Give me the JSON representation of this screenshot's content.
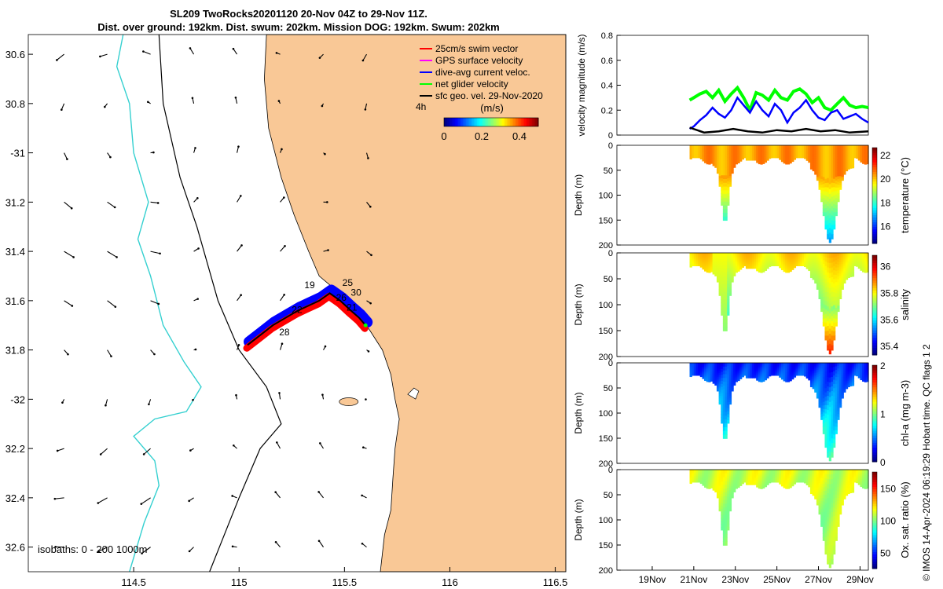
{
  "title_line1": "SL209 TwoRocks20201120 20-Nov 04Z to 29-Nov 11Z.",
  "title_line2": "Dist. over ground: 192km. Dist. swum: 202km. Mission DOG: 192km. Swum: 202km",
  "stamp": "© IMOS 14-Apr-2024 06:19:29 Hobart time. QC flags 1  2",
  "colors": {
    "land": "#f9c896",
    "sea": "#ffffff",
    "isobath_200": "#000000",
    "isobath_1000": "#35d0d0",
    "swim": "#ff0000",
    "gps": "#ff00ff",
    "dive": "#0000ff",
    "net": "#00ff00",
    "sfc": "#000000"
  },
  "chart_data": [
    {
      "type": "map",
      "name": "glider-track-map",
      "xlabel": "",
      "ylabel": "",
      "xlim": [
        114.0,
        116.55
      ],
      "ylim": [
        -32.7,
        -30.52
      ],
      "x_ticks": [
        114.5,
        115,
        115.5,
        116,
        116.5
      ],
      "x_tick_labels": [
        "114.5",
        "115",
        "115.5",
        "116",
        "116.5"
      ],
      "y_ticks": [
        -30.6,
        -30.8,
        -31,
        -31.2,
        -31.4,
        -31.6,
        -31.8,
        -32,
        -32.2,
        -32.4,
        -32.6
      ],
      "y_tick_labels": [
        "30.6",
        "30.8",
        "-31",
        "31.2",
        "31.4",
        "31.6",
        "31.8",
        "-32",
        "32.2",
        "32.4",
        "32.6"
      ],
      "legend": {
        "placement": "top-right",
        "entries": [
          {
            "label": "25cm/s swim vector",
            "color": "#ff0000"
          },
          {
            "label": "GPS surface velocity",
            "color": "#ff00ff"
          },
          {
            "label": "dive-avg current veloc.",
            "color": "#0000ff"
          },
          {
            "label": "net glider velocity",
            "color": "#00ff00"
          },
          {
            "label": "sfc geo. vel. 29-Nov-2020",
            "color": "#000000"
          }
        ],
        "extra_label": "4h"
      },
      "colorbar": {
        "label": "(m/s)",
        "ticks": [
          0,
          0.2,
          0.4
        ],
        "tick_labels": [
          "0",
          "0.2",
          "0.4"
        ],
        "range": [
          0,
          0.5
        ]
      },
      "isobath_note": "isobaths: 0 - 200  1000m",
      "track": [
        [
          115.04,
          -31.78
        ],
        [
          115.1,
          -31.74
        ],
        [
          115.16,
          -31.7
        ],
        [
          115.22,
          -31.67
        ],
        [
          115.28,
          -31.64
        ],
        [
          115.33,
          -31.62
        ],
        [
          115.38,
          -31.6
        ],
        [
          115.43,
          -31.57
        ],
        [
          115.48,
          -31.6
        ],
        [
          115.53,
          -31.64
        ],
        [
          115.57,
          -31.67
        ],
        [
          115.6,
          -31.7
        ]
      ],
      "track_labels": [
        {
          "text": "19",
          "lon": 115.31,
          "lat": -31.55
        },
        {
          "text": "25",
          "lon": 115.49,
          "lat": -31.54
        },
        {
          "text": "30",
          "lon": 115.53,
          "lat": -31.58
        },
        {
          "text": "26",
          "lon": 115.46,
          "lat": -31.6
        },
        {
          "text": "21",
          "lon": 115.51,
          "lat": -31.64
        },
        {
          "text": "22",
          "lon": 115.25,
          "lat": -31.65
        },
        {
          "text": "28",
          "lon": 115.19,
          "lat": -31.74
        }
      ],
      "vectors_sample": "surface geostrophic velocity arrows on 0.2 deg grid"
    },
    {
      "type": "line",
      "name": "velocity-magnitude",
      "ylabel": "velocity magnitude (m/s)",
      "xlim": [
        17.3,
        29.4
      ],
      "ylim": [
        0,
        0.8
      ],
      "y_ticks": [
        0,
        0.2,
        0.4,
        0.6,
        0.8
      ],
      "series": [
        {
          "color": "#00ff00",
          "x": [
            20.8,
            21.0,
            21.3,
            21.6,
            21.9,
            22.2,
            22.5,
            22.8,
            23.1,
            23.4,
            23.7,
            24.0,
            24.3,
            24.6,
            24.9,
            25.2,
            25.5,
            25.8,
            26.1,
            26.4,
            26.7,
            27.0,
            27.3,
            27.6,
            27.9,
            28.2,
            28.5,
            28.8,
            29.1,
            29.4
          ],
          "y": [
            0.28,
            0.3,
            0.33,
            0.35,
            0.3,
            0.36,
            0.27,
            0.33,
            0.38,
            0.3,
            0.2,
            0.34,
            0.32,
            0.28,
            0.36,
            0.3,
            0.28,
            0.35,
            0.37,
            0.33,
            0.26,
            0.3,
            0.22,
            0.2,
            0.25,
            0.3,
            0.24,
            0.22,
            0.23,
            0.22
          ]
        },
        {
          "color": "#0000ff",
          "x": [
            20.8,
            21.0,
            21.3,
            21.6,
            21.9,
            22.2,
            22.5,
            22.8,
            23.1,
            23.4,
            23.7,
            24.0,
            24.3,
            24.6,
            24.9,
            25.2,
            25.5,
            25.8,
            26.1,
            26.4,
            26.7,
            27.0,
            27.3,
            27.6,
            27.9,
            28.2,
            28.5,
            28.8,
            29.1,
            29.4
          ],
          "y": [
            0.05,
            0.07,
            0.12,
            0.16,
            0.22,
            0.17,
            0.14,
            0.2,
            0.3,
            0.24,
            0.18,
            0.27,
            0.2,
            0.15,
            0.25,
            0.2,
            0.1,
            0.18,
            0.22,
            0.28,
            0.2,
            0.14,
            0.12,
            0.18,
            0.2,
            0.13,
            0.15,
            0.17,
            0.13,
            0.1
          ]
        },
        {
          "color": "#000000",
          "x": [
            20.8,
            21.5,
            22.2,
            22.9,
            23.6,
            24.3,
            25.0,
            25.7,
            26.4,
            27.1,
            27.8,
            28.5,
            29.4
          ],
          "y": [
            0.06,
            0.02,
            0.03,
            0.05,
            0.03,
            0.02,
            0.04,
            0.03,
            0.05,
            0.03,
            0.04,
            0.02,
            0.03
          ]
        }
      ]
    },
    {
      "type": "heatmap",
      "name": "temperature-section",
      "ylabel": "Depth (m)",
      "ylim": [
        200,
        0
      ],
      "y_ticks": [
        0,
        50,
        100,
        150,
        200
      ],
      "colorbar": {
        "label": "temperature (°C)",
        "ticks": [
          16,
          18,
          20,
          22
        ],
        "range": [
          14.5,
          22.6
        ]
      },
      "surface_value": 20.3,
      "deep_value": 16.0
    },
    {
      "type": "heatmap",
      "name": "salinity-section",
      "ylabel": "Depth (m)",
      "ylim": [
        200,
        0
      ],
      "y_ticks": [
        0,
        50,
        100,
        150,
        200
      ],
      "colorbar": {
        "label": "salinity",
        "ticks": [
          35.4,
          35.6,
          35.8,
          36
        ],
        "tick_labels": [
          "35.4",
          "35.6",
          "35.8",
          "36"
        ],
        "range": [
          35.33,
          36.08
        ]
      },
      "surface_value": 35.85,
      "deep_value": 35.9
    },
    {
      "type": "heatmap",
      "name": "chla-section",
      "ylabel": "Depth (m)",
      "ylim": [
        200,
        0
      ],
      "y_ticks": [
        0,
        50,
        100,
        150,
        200
      ],
      "colorbar": {
        "label": "chl-a (mg m-3)",
        "ticks": [
          0,
          1,
          2
        ],
        "range": [
          0,
          2
        ]
      },
      "surface_value": 0.2,
      "deep_value": 0.7
    },
    {
      "type": "heatmap",
      "name": "oxygen-section",
      "ylabel": "Depth (m)",
      "ylim": [
        200,
        0
      ],
      "y_ticks": [
        0,
        50,
        100,
        150,
        200
      ],
      "colorbar": {
        "label": "Ox. sat. ratio (%)",
        "ticks": [
          50,
          100,
          150
        ],
        "range": [
          25,
          175
        ]
      },
      "surface_value": 115,
      "deep_value": 105
    }
  ],
  "time_axis": {
    "xlim": [
      17.3,
      29.4
    ],
    "ticks": [
      19,
      21,
      23,
      25,
      27,
      29
    ],
    "tick_labels": [
      "19Nov",
      "21Nov",
      "23Nov",
      "25Nov",
      "27Nov",
      "29Nov"
    ]
  }
}
